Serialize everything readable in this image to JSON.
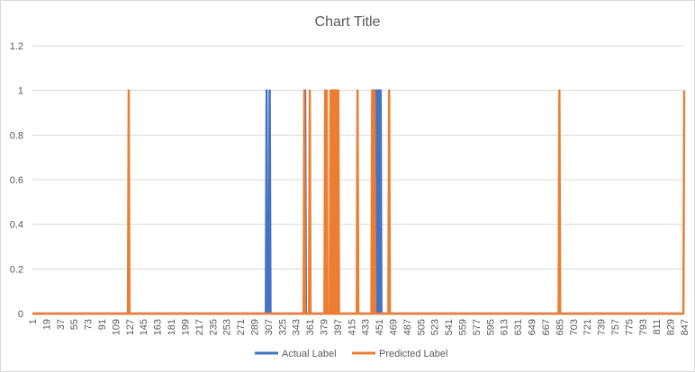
{
  "chart_data": {
    "type": "line",
    "title": "Chart Title",
    "xlabel": "",
    "ylabel": "",
    "ylim": [
      0,
      1.2
    ],
    "y_ticks": [
      "0",
      "0.2",
      "0.4",
      "0.6",
      "0.8",
      "1",
      "1.2"
    ],
    "x_range": [
      1,
      847
    ],
    "x_tick_step": 18,
    "grid": "horizontal",
    "legend_position": "bottom",
    "series": [
      {
        "name": "Actual Label",
        "color": "#4472C4",
        "spikes": [
          305,
          309,
          355,
          444,
          445,
          446,
          447,
          448,
          449,
          450,
          451,
          452,
          453
        ]
      },
      {
        "name": "Predicted Label",
        "color": "#ED7D31",
        "spikes": [
          126,
          354,
          361,
          381,
          383,
          388,
          389,
          390,
          391,
          392,
          393,
          394,
          395,
          396,
          397,
          398,
          423,
          442,
          445,
          464,
          685,
          847
        ]
      }
    ]
  }
}
